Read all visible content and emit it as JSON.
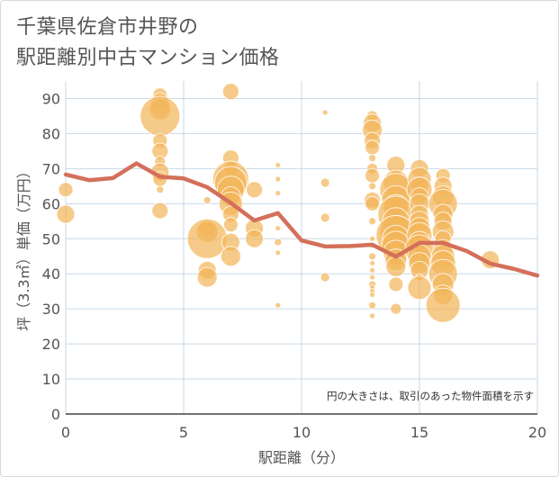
{
  "title": {
    "line1": "千葉県佐倉市井野の",
    "line2": "駅距離別中古マンション価格"
  },
  "colors": {
    "bubble": "#f2b55a",
    "line": "#d4705a",
    "grid": "#c8d8e6",
    "text": "#555555"
  },
  "chart_data": {
    "type": "scatter",
    "title": "千葉県佐倉市井野の駅距離別中古マンション価格",
    "xlabel": "駅距離（分）",
    "ylabel": "坪（3.3㎡）単価（万円）",
    "xlim": [
      0,
      20
    ],
    "ylim": [
      0,
      95
    ],
    "x_ticks": [
      "0",
      "5",
      "10",
      "15",
      "20"
    ],
    "y_ticks": [
      "0",
      "10",
      "20",
      "30",
      "40",
      "50",
      "60",
      "70",
      "80",
      "90"
    ],
    "grid": true,
    "annotation": "円の大きさは、取引のあった物件面積を示す",
    "series": [
      {
        "type": "bubble",
        "points": [
          [
            0,
            64,
            8
          ],
          [
            0,
            57,
            10
          ],
          [
            4,
            91,
            8
          ],
          [
            4,
            89,
            10
          ],
          [
            4,
            87,
            12
          ],
          [
            4,
            85,
            22
          ],
          [
            4,
            78,
            8
          ],
          [
            4,
            75,
            9
          ],
          [
            4,
            72,
            6
          ],
          [
            4,
            69,
            10
          ],
          [
            4,
            67,
            8
          ],
          [
            4,
            64,
            4
          ],
          [
            4,
            58,
            9
          ],
          [
            6,
            61,
            4
          ],
          [
            6,
            53,
            9
          ],
          [
            6,
            52,
            12
          ],
          [
            6,
            50,
            22
          ],
          [
            6,
            41,
            10
          ],
          [
            6,
            39,
            11
          ],
          [
            7,
            92,
            9
          ],
          [
            7,
            73,
            9
          ],
          [
            7,
            70,
            8
          ],
          [
            7,
            67,
            20
          ],
          [
            7,
            66,
            18
          ],
          [
            7,
            64,
            15
          ],
          [
            7,
            62,
            11
          ],
          [
            7,
            60,
            13
          ],
          [
            7,
            57,
            9
          ],
          [
            7,
            54,
            8
          ],
          [
            7,
            49,
            10
          ],
          [
            7,
            45,
            11
          ],
          [
            8,
            64,
            9
          ],
          [
            8,
            53,
            10
          ],
          [
            8,
            50,
            10
          ],
          [
            9,
            71,
            3
          ],
          [
            9,
            67,
            3
          ],
          [
            9,
            63,
            3
          ],
          [
            9,
            57,
            3
          ],
          [
            9,
            53,
            3
          ],
          [
            9,
            49,
            4
          ],
          [
            9,
            46,
            3
          ],
          [
            9,
            31,
            3
          ],
          [
            11,
            86,
            3
          ],
          [
            11,
            66,
            5
          ],
          [
            11,
            56,
            5
          ],
          [
            11,
            39,
            5
          ],
          [
            13,
            85,
            6
          ],
          [
            13,
            83,
            10
          ],
          [
            13,
            81,
            11
          ],
          [
            13,
            78,
            9
          ],
          [
            13,
            76,
            8
          ],
          [
            13,
            73,
            4
          ],
          [
            13,
            70,
            6
          ],
          [
            13,
            68,
            8
          ],
          [
            13,
            65,
            4
          ],
          [
            13,
            61,
            9
          ],
          [
            13,
            60,
            8
          ],
          [
            13,
            55,
            4
          ],
          [
            13,
            50,
            3
          ],
          [
            13,
            48,
            3
          ],
          [
            13,
            45,
            4
          ],
          [
            13,
            43,
            3
          ],
          [
            13,
            41,
            3
          ],
          [
            13,
            39,
            3
          ],
          [
            13,
            37,
            4
          ],
          [
            13,
            36,
            3
          ],
          [
            13,
            35,
            3
          ],
          [
            13,
            34,
            3
          ],
          [
            13,
            31,
            4
          ],
          [
            13,
            28,
            3
          ],
          [
            14,
            71,
            10
          ],
          [
            14,
            66,
            14
          ],
          [
            14,
            64,
            18
          ],
          [
            14,
            61,
            16
          ],
          [
            14,
            59,
            14
          ],
          [
            14,
            57,
            20
          ],
          [
            14,
            55,
            15
          ],
          [
            14,
            52,
            18
          ],
          [
            14,
            51,
            22
          ],
          [
            14,
            50,
            15
          ],
          [
            14,
            48,
            16
          ],
          [
            14,
            46,
            14
          ],
          [
            14,
            44,
            12
          ],
          [
            14,
            42,
            11
          ],
          [
            14,
            37,
            8
          ],
          [
            14,
            30,
            6
          ],
          [
            15,
            70,
            10
          ],
          [
            15,
            67,
            13
          ],
          [
            15,
            65,
            10
          ],
          [
            15,
            64,
            14
          ],
          [
            15,
            62,
            10
          ],
          [
            15,
            60,
            11
          ],
          [
            15,
            57,
            10
          ],
          [
            15,
            55,
            11
          ],
          [
            15,
            53,
            12
          ],
          [
            15,
            51,
            14
          ],
          [
            15,
            49,
            12
          ],
          [
            15,
            47,
            16
          ],
          [
            15,
            45,
            13
          ],
          [
            15,
            43,
            12
          ],
          [
            15,
            41,
            10
          ],
          [
            15,
            39,
            4
          ],
          [
            15,
            36,
            13
          ],
          [
            16,
            68,
            8
          ],
          [
            16,
            65,
            10
          ],
          [
            16,
            62,
            12
          ],
          [
            16,
            60,
            16
          ],
          [
            16,
            57,
            11
          ],
          [
            16,
            55,
            10
          ],
          [
            16,
            52,
            12
          ],
          [
            16,
            50,
            9
          ],
          [
            16,
            47,
            11
          ],
          [
            16,
            45,
            13
          ],
          [
            16,
            43,
            14
          ],
          [
            16,
            40,
            16
          ],
          [
            16,
            37,
            12
          ],
          [
            16,
            34,
            11
          ],
          [
            16,
            31,
            19
          ],
          [
            18,
            44,
            10
          ]
        ]
      },
      {
        "type": "line",
        "x": [
          0,
          1,
          2,
          3,
          4,
          5,
          6,
          7,
          8,
          9,
          10,
          11,
          12,
          13,
          14,
          15,
          16,
          17,
          18,
          19,
          20
        ],
        "values": [
          68.3,
          66.7,
          67.3,
          71.5,
          67.7,
          67.2,
          64.7,
          60.2,
          55.2,
          57.3,
          49.5,
          47.8,
          47.9,
          48.3,
          44.9,
          48.8,
          48.8,
          46.5,
          42.9,
          41.4,
          39.5
        ]
      }
    ]
  }
}
